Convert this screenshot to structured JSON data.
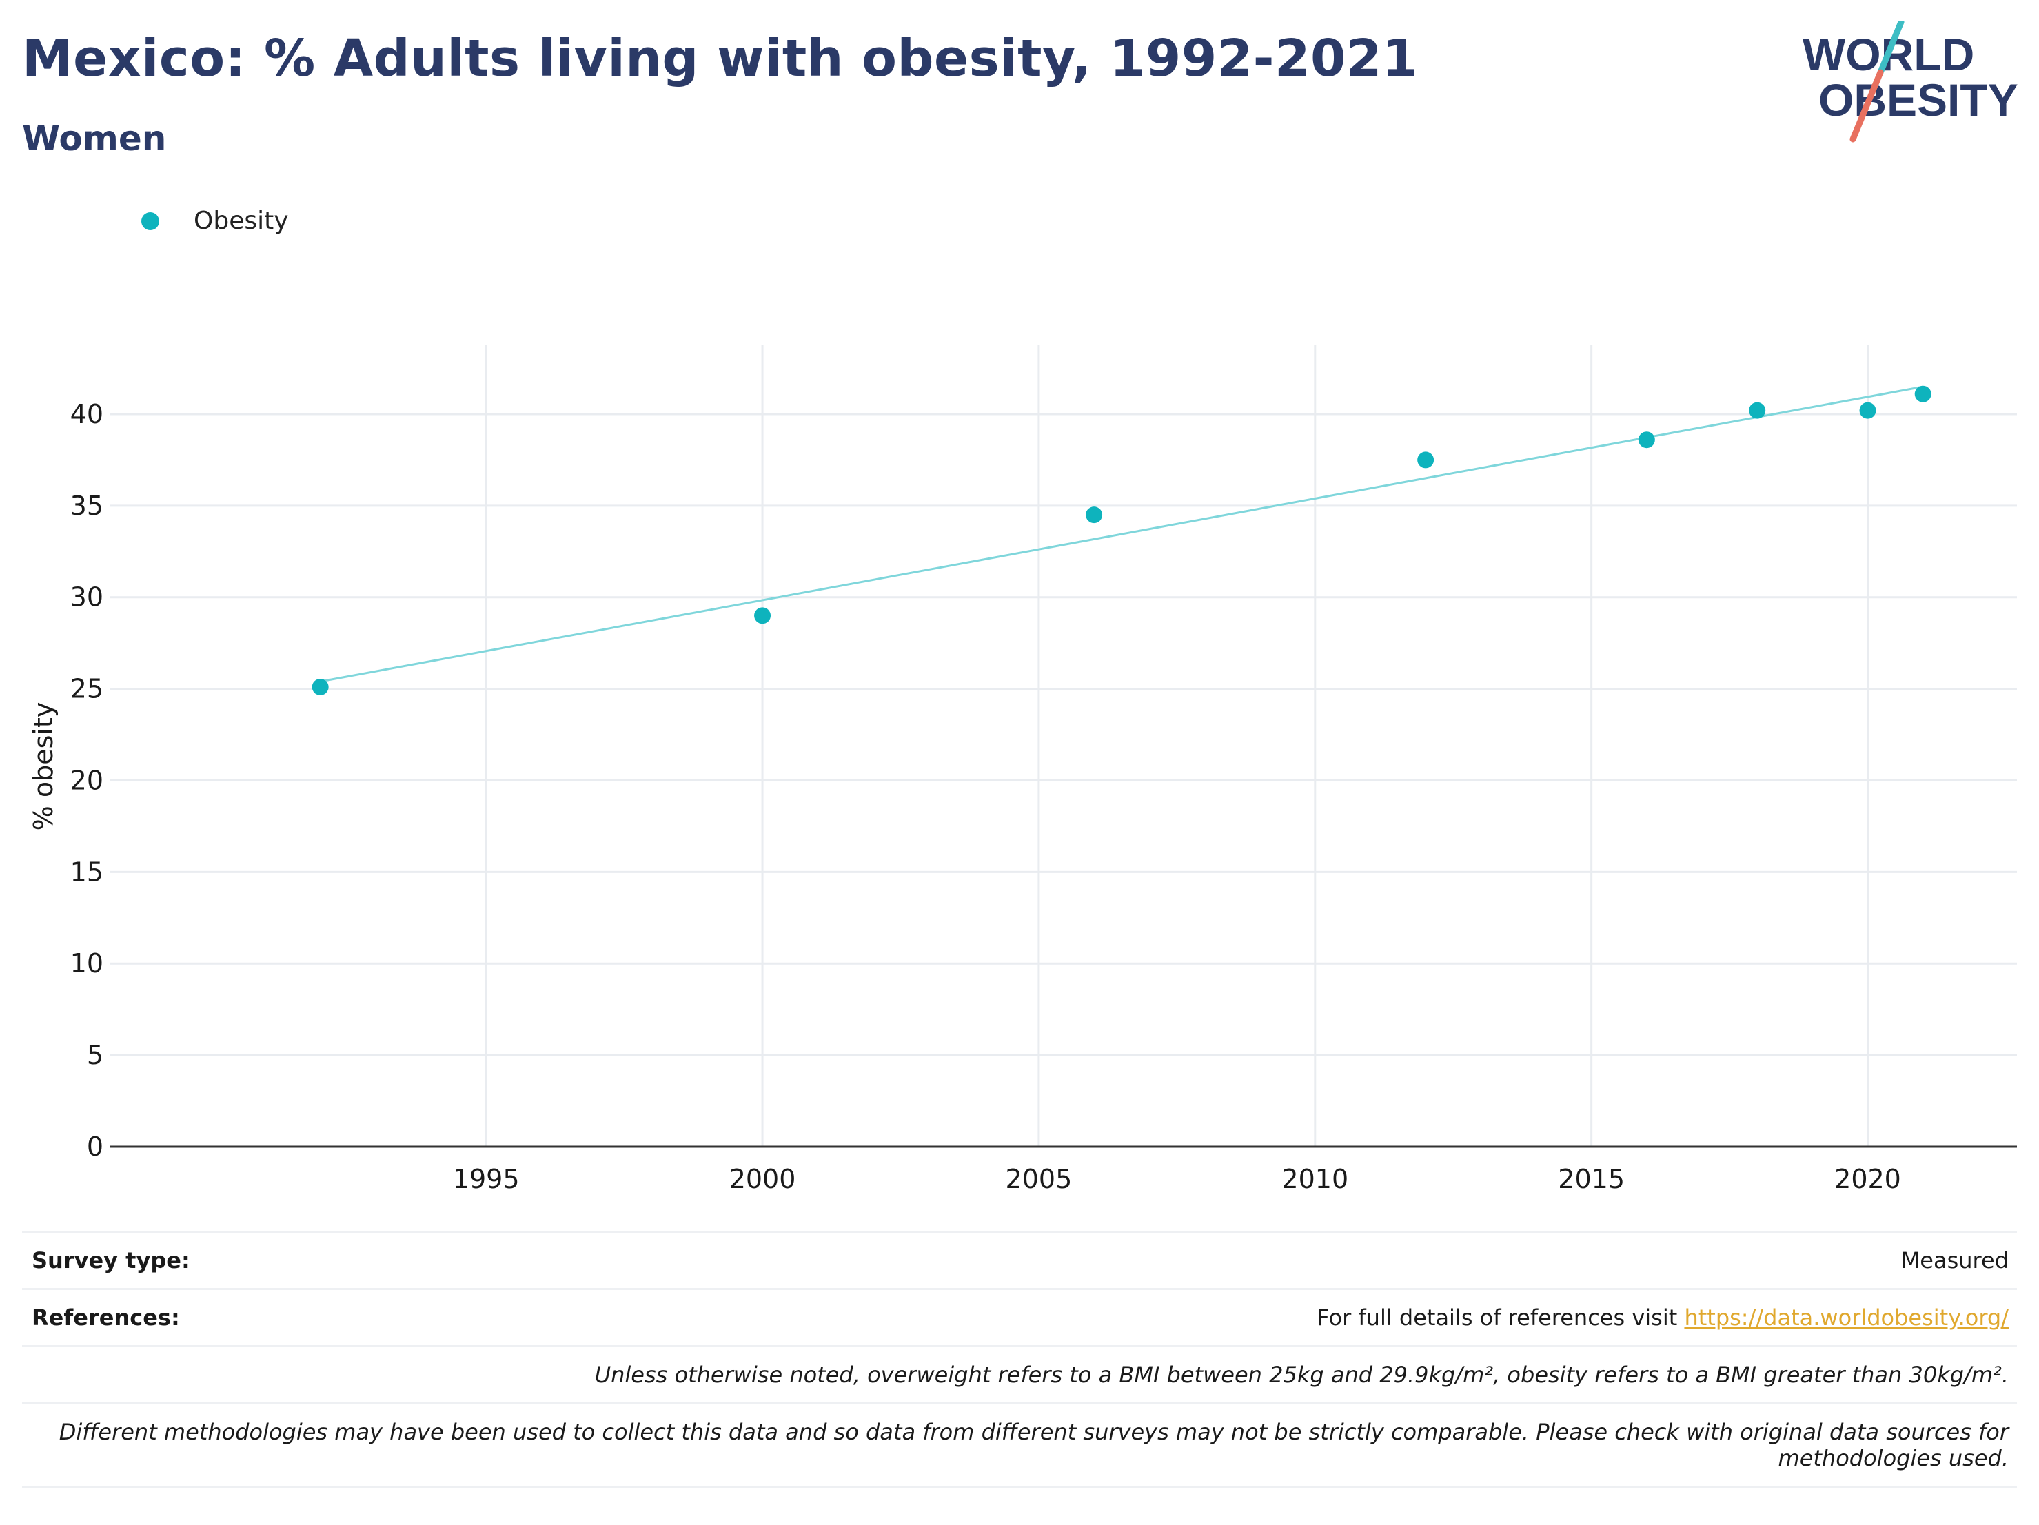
{
  "header": {
    "title": "Mexico: % Adults living with obesity, 1992-2021",
    "subtitle": "Women"
  },
  "logo": {
    "line1": "WORLD",
    "line2": "OBESITY",
    "colors": {
      "text": "#2b3a67",
      "slash_top": "#3dbdc4",
      "slash_bottom": "#e8705f"
    }
  },
  "legend": {
    "items": [
      {
        "label": "Obesity",
        "color": "#0eb3bd"
      }
    ]
  },
  "chart_data": {
    "type": "scatter",
    "title": "Mexico: % Adults living with obesity, 1992-2021",
    "subtitle": "Women",
    "xlabel": "",
    "ylabel": "% obesity",
    "xlim": [
      1988.2,
      2022.7
    ],
    "ylim": [
      0,
      43.8
    ],
    "x_ticks": [
      1995,
      2000,
      2005,
      2010,
      2015,
      2020
    ],
    "y_ticks": [
      0,
      5,
      10,
      15,
      20,
      25,
      30,
      35,
      40
    ],
    "grid": true,
    "legend_position": "top-left",
    "series": [
      {
        "name": "Obesity",
        "color": "#0eb3bd",
        "x": [
          1992,
          2000,
          2006,
          2012,
          2016,
          2018,
          2020,
          2021
        ],
        "values": [
          25.1,
          29.0,
          34.5,
          37.5,
          38.6,
          40.2,
          40.2,
          41.1
        ]
      }
    ],
    "trendline": {
      "color": "#7fd6db",
      "x": [
        1992,
        2021
      ],
      "values": [
        25.4,
        41.5
      ]
    }
  },
  "footer": {
    "survey_type_label": "Survey type:",
    "survey_type_value": "Measured",
    "references_label": "References:",
    "references_prefix": "For full details of references visit ",
    "references_link": "https://data.worldobesity.org/",
    "note1": "Unless otherwise noted, overweight refers to a BMI between 25kg and 29.9kg/m², obesity refers to a BMI greater than 30kg/m².",
    "note2": "Different methodologies may have been used to collect this data and so data from different surveys may not be strictly comparable. Please check with original data sources for methodologies used."
  }
}
